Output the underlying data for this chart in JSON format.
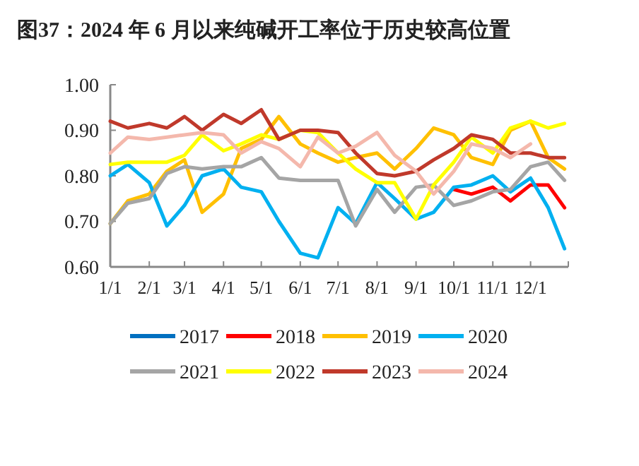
{
  "chart_data": {
    "type": "line",
    "title": "图37：2024 年 6 月以来纯碱开工率位于历史较高位置",
    "x": [
      "--01-01",
      "--01-15",
      "--02-01",
      "--02-15",
      "--03-01",
      "--03-15",
      "--04-01",
      "--04-15",
      "--05-01",
      "--05-15",
      "--06-01",
      "--06-15",
      "--07-01",
      "--07-15",
      "--08-01",
      "--08-15",
      "--09-01",
      "--09-15",
      "--10-01",
      "--10-15",
      "--11-01",
      "--11-15",
      "--12-01",
      "--12-15",
      "--12-28"
    ],
    "xlim": [
      "--01-01",
      "--12-31"
    ],
    "xticks": [
      {
        "value": "--01-01",
        "label": "1/1"
      },
      {
        "value": "--02-01",
        "label": "2/1"
      },
      {
        "value": "--03-01",
        "label": "3/1"
      },
      {
        "value": "--04-01",
        "label": "4/1"
      },
      {
        "value": "--05-01",
        "label": "5/1"
      },
      {
        "value": "--06-01",
        "label": "6/1"
      },
      {
        "value": "--07-01",
        "label": "7/1"
      },
      {
        "value": "--08-01",
        "label": "8/1"
      },
      {
        "value": "--09-01",
        "label": "9/1"
      },
      {
        "value": "--10-01",
        "label": "10/1"
      },
      {
        "value": "--11-01",
        "label": "11/1"
      },
      {
        "value": "--12-01",
        "label": "12/1"
      }
    ],
    "ylim": [
      0.6,
      1.0
    ],
    "yticks": [
      {
        "value": 0.6,
        "label": "0.60"
      },
      {
        "value": 0.7,
        "label": "0.70"
      },
      {
        "value": 0.8,
        "label": "0.80"
      },
      {
        "value": 0.9,
        "label": "0.90"
      },
      {
        "value": 1.0,
        "label": "1.00"
      }
    ],
    "legend": "bottom",
    "series": [
      {
        "name": "2017",
        "color": "#0070c0",
        "values": [
          null,
          null,
          null,
          null,
          null,
          null,
          null,
          null,
          null,
          null,
          null,
          null,
          null,
          null,
          null,
          null,
          null,
          null,
          null,
          null,
          null,
          null,
          null,
          null,
          null
        ]
      },
      {
        "name": "2018",
        "color": "#ff0000",
        "values": [
          null,
          null,
          null,
          null,
          null,
          null,
          null,
          null,
          null,
          null,
          null,
          null,
          null,
          null,
          null,
          null,
          null,
          null,
          0.77,
          0.76,
          0.775,
          0.745,
          0.78,
          0.78,
          0.73
        ]
      },
      {
        "name": "2019",
        "color": "#ffc000",
        "values": [
          0.695,
          0.745,
          0.76,
          0.81,
          0.835,
          0.72,
          0.76,
          0.86,
          0.88,
          0.93,
          0.87,
          0.85,
          0.83,
          0.84,
          0.85,
          0.815,
          0.86,
          0.905,
          0.89,
          0.84,
          0.825,
          0.9,
          0.92,
          0.84,
          0.815
        ]
      },
      {
        "name": "2020",
        "color": "#00b0f0",
        "values": [
          0.8,
          0.825,
          0.785,
          0.69,
          0.735,
          0.8,
          0.815,
          0.775,
          0.765,
          0.7,
          0.63,
          0.62,
          0.73,
          0.695,
          0.785,
          0.75,
          0.705,
          0.72,
          0.775,
          0.78,
          0.8,
          0.765,
          0.795,
          0.73,
          0.64
        ]
      },
      {
        "name": "2021",
        "color": "#a5a5a5",
        "values": [
          0.695,
          0.74,
          0.75,
          0.805,
          0.82,
          0.815,
          0.82,
          0.82,
          0.84,
          0.795,
          0.79,
          0.79,
          0.79,
          0.69,
          0.77,
          0.72,
          0.775,
          0.78,
          0.735,
          0.745,
          0.765,
          0.77,
          0.82,
          0.83,
          0.79
        ]
      },
      {
        "name": "2022",
        "color": "#ffff00",
        "values": [
          0.825,
          0.83,
          0.83,
          0.83,
          0.845,
          0.89,
          0.855,
          0.87,
          0.89,
          0.88,
          0.9,
          0.895,
          0.85,
          0.815,
          0.785,
          0.785,
          0.705,
          0.78,
          0.83,
          0.885,
          0.85,
          0.905,
          0.92,
          0.905,
          0.915
        ]
      },
      {
        "name": "2023",
        "color": "#c0392b",
        "values": [
          0.92,
          0.905,
          0.915,
          0.905,
          0.93,
          0.9,
          0.935,
          0.915,
          0.945,
          0.88,
          0.9,
          0.9,
          0.895,
          0.85,
          0.805,
          0.8,
          0.81,
          0.835,
          0.86,
          0.89,
          0.88,
          0.85,
          0.85,
          0.84,
          0.84
        ]
      },
      {
        "name": "2024",
        "color": "#f4b8ac",
        "values": [
          0.85,
          0.885,
          0.88,
          0.885,
          0.89,
          0.895,
          0.89,
          0.85,
          0.875,
          0.86,
          0.82,
          0.885,
          0.85,
          0.865,
          0.895,
          0.845,
          0.81,
          0.76,
          0.81,
          0.87,
          0.86,
          0.84,
          0.87,
          null,
          null
        ]
      }
    ]
  }
}
